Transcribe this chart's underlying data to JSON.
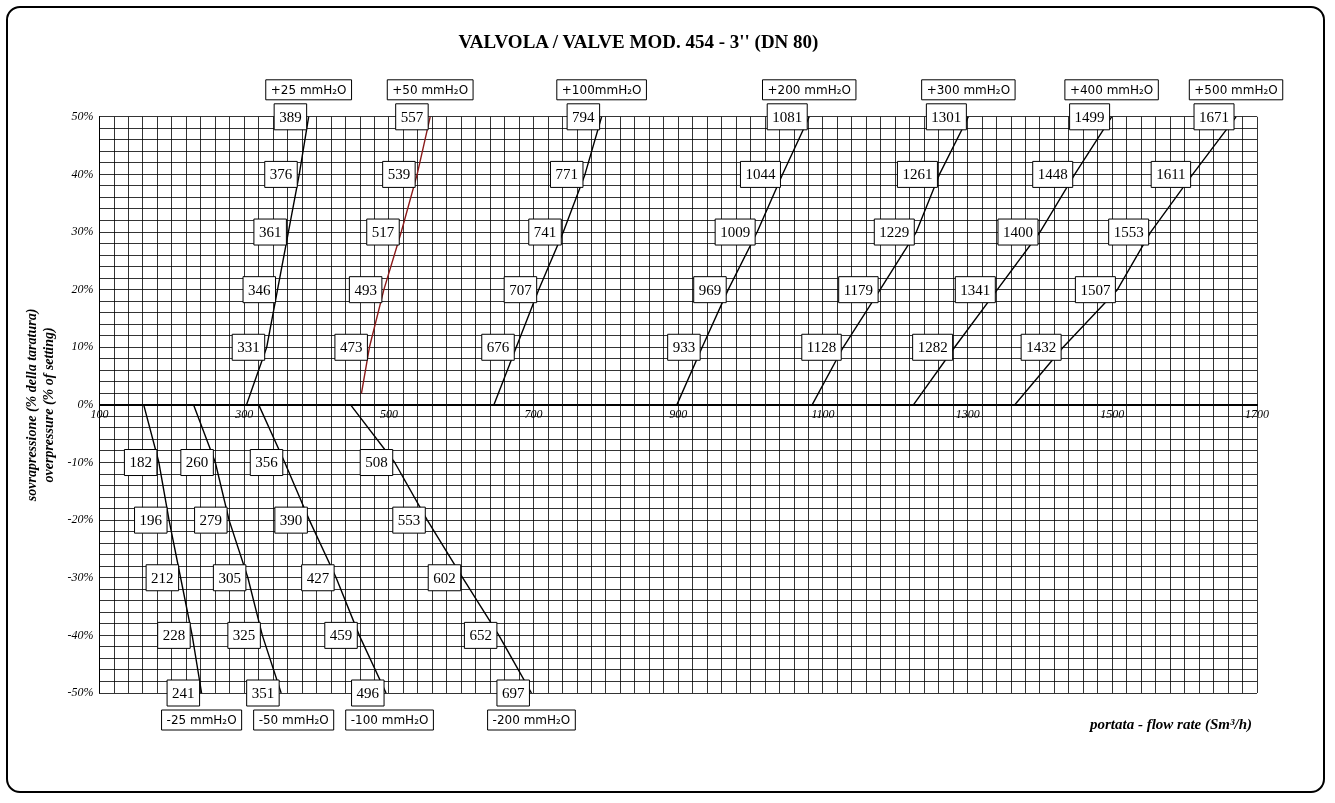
{
  "chart_data": {
    "type": "line",
    "title": "VALVOLA / VALVE MOD. 454 - 3'' (DN 80)",
    "xlabel": "portata - flow rate (Sm³/h)",
    "ylabel": "sovrapressione (% della taratura)\noverpressure (% of setting)",
    "annotations": [
      {
        "text": "331",
        "x": 331,
        "y": 10
      },
      {
        "text": "346",
        "x": 346,
        "y": 20
      },
      {
        "text": "361",
        "x": 361,
        "y": 30
      },
      {
        "text": "376",
        "x": 376,
        "y": 40
      },
      {
        "text": "389",
        "x": 389,
        "y": 50
      },
      {
        "text": "473",
        "x": 473,
        "y": 10
      },
      {
        "text": "493",
        "x": 493,
        "y": 20
      },
      {
        "text": "517",
        "x": 517,
        "y": 30
      },
      {
        "text": "539",
        "x": 539,
        "y": 40
      },
      {
        "text": "557",
        "x": 557,
        "y": 50
      },
      {
        "text": "676",
        "x": 676,
        "y": 10
      },
      {
        "text": "707",
        "x": 707,
        "y": 20
      },
      {
        "text": "741",
        "x": 741,
        "y": 30
      },
      {
        "text": "771",
        "x": 771,
        "y": 40
      },
      {
        "text": "794",
        "x": 794,
        "y": 50
      },
      {
        "text": "933",
        "x": 933,
        "y": 10
      },
      {
        "text": "969",
        "x": 969,
        "y": 20
      },
      {
        "text": "1009",
        "x": 1009,
        "y": 30
      },
      {
        "text": "1044",
        "x": 1044,
        "y": 40
      },
      {
        "text": "1081",
        "x": 1081,
        "y": 50
      },
      {
        "text": "1128",
        "x": 1128,
        "y": 10
      },
      {
        "text": "1179",
        "x": 1179,
        "y": 20
      },
      {
        "text": "1229",
        "x": 1229,
        "y": 30
      },
      {
        "text": "1261",
        "x": 1261,
        "y": 40
      },
      {
        "text": "1301",
        "x": 1301,
        "y": 50
      },
      {
        "text": "1282",
        "x": 1282,
        "y": 10
      },
      {
        "text": "1341",
        "x": 1341,
        "y": 20
      },
      {
        "text": "1400",
        "x": 1400,
        "y": 30
      },
      {
        "text": "1448",
        "x": 1448,
        "y": 40
      },
      {
        "text": "1499",
        "x": 1499,
        "y": 50
      },
      {
        "text": "1432",
        "x": 1432,
        "y": 10
      },
      {
        "text": "1507",
        "x": 1507,
        "y": 20
      },
      {
        "text": "1553",
        "x": 1553,
        "y": 30
      },
      {
        "text": "1611",
        "x": 1611,
        "y": 40
      },
      {
        "text": "1671",
        "x": 1671,
        "y": 50
      },
      {
        "text": "182",
        "x": 182,
        "y": -10
      },
      {
        "text": "196",
        "x": 196,
        "y": -20
      },
      {
        "text": "212",
        "x": 212,
        "y": -30
      },
      {
        "text": "228",
        "x": 228,
        "y": -40
      },
      {
        "text": "241",
        "x": 241,
        "y": -50
      },
      {
        "text": "260",
        "x": 260,
        "y": -10
      },
      {
        "text": "279",
        "x": 279,
        "y": -20
      },
      {
        "text": "305",
        "x": 305,
        "y": -30
      },
      {
        "text": "325",
        "x": 325,
        "y": -40
      },
      {
        "text": "351",
        "x": 351,
        "y": -50
      },
      {
        "text": "356",
        "x": 356,
        "y": -10
      },
      {
        "text": "390",
        "x": 390,
        "y": -20
      },
      {
        "text": "427",
        "x": 427,
        "y": -30
      },
      {
        "text": "459",
        "x": 459,
        "y": -40
      },
      {
        "text": "496",
        "x": 496,
        "y": -50
      },
      {
        "text": "508",
        "x": 508,
        "y": -10
      },
      {
        "text": "553",
        "x": 553,
        "y": -20
      },
      {
        "text": "602",
        "x": 602,
        "y": -30
      },
      {
        "text": "652",
        "x": 652,
        "y": -40
      },
      {
        "text": "697",
        "x": 697,
        "y": -50
      }
    ],
    "legend": "bottom",
    "xlim": [
      100,
      1700
    ],
    "ylim": [
      -50,
      50
    ],
    "grid": true,
    "marker": "none",
    "line_style": "solid",
    "xticks": [
      100,
      {
        "value": 120,
        "label": null
      },
      {
        "value": 140,
        "label": null
      },
      {
        "value": 160,
        "label": null
      },
      {
        "value": 180,
        "label": null
      },
      {
        "value": 200,
        "label": null
      },
      {
        "value": 220,
        "label": null
      },
      {
        "value": 240,
        "label": null
      },
      {
        "value": 260,
        "label": null
      },
      {
        "value": 280,
        "label": null
      },
      300,
      {
        "value": 320,
        "label": null
      },
      {
        "value": 340,
        "label": null
      },
      {
        "value": 360,
        "label": null
      },
      {
        "value": 380,
        "label": null
      },
      {
        "value": 400,
        "label": null
      },
      {
        "value": 420,
        "label": null
      },
      {
        "value": 440,
        "label": null
      },
      {
        "value": 460,
        "label": null
      },
      {
        "value": 480,
        "label": null
      },
      500,
      {
        "value": 520,
        "label": null
      },
      {
        "value": 540,
        "label": null
      },
      {
        "value": 560,
        "label": null
      },
      {
        "value": 580,
        "label": null
      },
      {
        "value": 600,
        "label": null
      },
      {
        "value": 620,
        "label": null
      },
      {
        "value": 640,
        "label": null
      },
      {
        "value": 660,
        "label": null
      },
      {
        "value": 680,
        "label": null
      },
      700,
      {
        "value": 720,
        "label": null
      },
      {
        "value": 740,
        "label": null
      },
      {
        "value": 760,
        "label": null
      },
      {
        "value": 780,
        "label": null
      },
      {
        "value": 800,
        "label": null
      },
      {
        "value": 820,
        "label": null
      },
      {
        "value": 840,
        "label": null
      },
      {
        "value": 860,
        "label": null
      },
      {
        "value": 880,
        "label": null
      },
      900,
      {
        "value": 920,
        "label": null
      },
      {
        "value": 940,
        "label": null
      },
      {
        "value": 960,
        "label": null
      },
      {
        "value": 980,
        "label": null
      },
      {
        "value": 1000,
        "label": null
      },
      {
        "value": 1020,
        "label": null
      },
      {
        "value": 1040,
        "label": null
      },
      {
        "value": 1060,
        "label": null
      },
      {
        "value": 1080,
        "label": null
      },
      1100,
      {
        "value": 1120,
        "label": null
      },
      {
        "value": 1140,
        "label": null
      },
      {
        "value": 1160,
        "label": null
      },
      {
        "value": 1180,
        "label": null
      },
      {
        "value": 1200,
        "label": null
      },
      {
        "value": 1220,
        "label": null
      },
      {
        "value": 1240,
        "label": null
      },
      {
        "value": 1260,
        "label": null
      },
      {
        "value": 1280,
        "label": null
      },
      1300,
      {
        "value": 1320,
        "label": null
      },
      {
        "value": 1340,
        "label": null
      },
      {
        "value": 1360,
        "label": null
      },
      {
        "value": 1380,
        "label": null
      },
      {
        "value": 1400,
        "label": null
      },
      {
        "value": 1420,
        "label": null
      },
      {
        "value": 1440,
        "label": null
      },
      {
        "value": 1460,
        "label": null
      },
      {
        "value": 1480,
        "label": null
      },
      1500,
      {
        "value": 1520,
        "label": null
      },
      {
        "value": 1540,
        "label": null
      },
      {
        "value": 1560,
        "label": null
      },
      {
        "value": 1580,
        "label": null
      },
      {
        "value": 1600,
        "label": null
      },
      {
        "value": 1620,
        "label": null
      },
      {
        "value": 1640,
        "label": null
      },
      {
        "value": 1660,
        "label": null
      },
      {
        "value": 1680,
        "label": null
      },
      1700
    ],
    "yticks": [
      {
        "value": -50,
        "label": "-50%"
      },
      {
        "value": -48,
        "label": null
      },
      {
        "value": -46,
        "label": null
      },
      {
        "value": -44,
        "label": null
      },
      {
        "value": -42,
        "label": null
      },
      {
        "value": -40,
        "label": "-40%"
      },
      {
        "value": -38,
        "label": null
      },
      {
        "value": -36,
        "label": null
      },
      {
        "value": -34,
        "label": null
      },
      {
        "value": -32,
        "label": null
      },
      {
        "value": -30,
        "label": "-30%"
      },
      {
        "value": -28,
        "label": null
      },
      {
        "value": -26,
        "label": null
      },
      {
        "value": -24,
        "label": null
      },
      {
        "value": -22,
        "label": null
      },
      {
        "value": -20,
        "label": "-20%"
      },
      {
        "value": -18,
        "label": null
      },
      {
        "value": -16,
        "label": null
      },
      {
        "value": -14,
        "label": null
      },
      {
        "value": -12,
        "label": null
      },
      {
        "value": -10,
        "label": "-10%"
      },
      {
        "value": -8,
        "label": null
      },
      {
        "value": -6,
        "label": null
      },
      {
        "value": -4,
        "label": null
      },
      {
        "value": -2,
        "label": null
      },
      {
        "value": 0,
        "label": "0%"
      },
      {
        "value": 2,
        "label": null
      },
      {
        "value": 4,
        "label": null
      },
      {
        "value": 6,
        "label": null
      },
      {
        "value": 8,
        "label": null
      },
      {
        "value": 10,
        "label": "10%"
      },
      {
        "value": 12,
        "label": null
      },
      {
        "value": 14,
        "label": null
      },
      {
        "value": 16,
        "label": null
      },
      {
        "value": 18,
        "label": null
      },
      {
        "value": 20,
        "label": "20%"
      },
      {
        "value": 22,
        "label": null
      },
      {
        "value": 24,
        "label": null
      },
      {
        "value": 26,
        "label": null
      },
      {
        "value": 28,
        "label": null
      },
      {
        "value": 30,
        "label": "30%"
      },
      {
        "value": 32,
        "label": null
      },
      {
        "value": 34,
        "label": null
      },
      {
        "value": 36,
        "label": null
      },
      {
        "value": 38,
        "label": null
      },
      {
        "value": 40,
        "label": "40%"
      },
      {
        "value": 42,
        "label": null
      },
      {
        "value": 44,
        "label": null
      },
      {
        "value": 46,
        "label": null
      },
      {
        "value": 48,
        "label": null
      },
      {
        "value": 50,
        "label": "50%"
      }
    ],
    "series": [
      {
        "name": "+25 mmH₂O",
        "color": "#000000",
        "x": [
          303,
          331,
          346,
          361,
          376,
          389
        ],
        "values": [
          0,
          10,
          20,
          30,
          40,
          50
        ]
      },
      {
        "name": "+50 mmH₂O",
        "color": "#8b1a1a",
        "x": [
          462,
          473,
          493,
          517,
          539,
          557
        ],
        "values": [
          2,
          10,
          20,
          30,
          40,
          50
        ]
      },
      {
        "name": "+100mmH₂O",
        "color": "#000000",
        "x": [
          645,
          676,
          707,
          741,
          771,
          794
        ],
        "values": [
          0,
          10,
          20,
          30,
          40,
          50
        ]
      },
      {
        "name": "+200 mmH₂O",
        "color": "#000000",
        "x": [
          898,
          933,
          969,
          1009,
          1044,
          1081
        ],
        "values": [
          0,
          10,
          20,
          30,
          40,
          50
        ]
      },
      {
        "name": "+300 mmH₂O",
        "color": "#000000",
        "x": [
          1085,
          1128,
          1179,
          1229,
          1261,
          1301
        ],
        "values": [
          0,
          10,
          20,
          30,
          40,
          50
        ]
      },
      {
        "name": "+400 mmH₂O",
        "color": "#000000",
        "x": [
          1225,
          1282,
          1341,
          1400,
          1448,
          1499
        ],
        "values": [
          0,
          10,
          20,
          30,
          40,
          50
        ]
      },
      {
        "name": "+500 mmH₂O",
        "color": "#000000",
        "x": [
          1365,
          1432,
          1507,
          1553,
          1611,
          1671
        ],
        "values": [
          0,
          10,
          20,
          30,
          40,
          50
        ]
      },
      {
        "name": "-25 mmH₂O",
        "color": "#000000",
        "x": [
          161,
          182,
          196,
          212,
          228,
          241
        ],
        "values": [
          0,
          -10,
          -20,
          -30,
          -40,
          -50
        ]
      },
      {
        "name": "-50 mmH₂O",
        "color": "#000000",
        "x": [
          230,
          260,
          279,
          305,
          325,
          351
        ],
        "values": [
          0,
          -10,
          -20,
          -30,
          -40,
          -50
        ]
      },
      {
        "name": "-100 mmH₂O",
        "color": "#000000",
        "x": [
          320,
          356,
          390,
          427,
          459,
          496
        ],
        "values": [
          0,
          -10,
          -20,
          -30,
          -40,
          -50
        ]
      },
      {
        "name": "-200 mmH₂O",
        "color": "#000000",
        "x": [
          447,
          508,
          553,
          602,
          652,
          697
        ],
        "values": [
          0,
          -10,
          -20,
          -30,
          -40,
          -50
        ]
      }
    ]
  }
}
